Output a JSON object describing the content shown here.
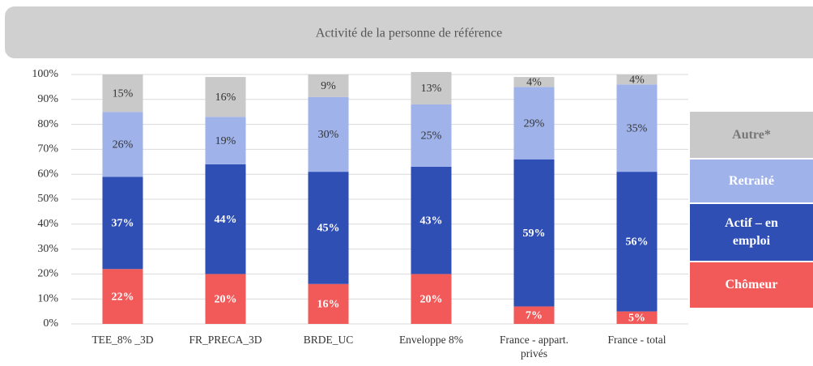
{
  "chart_data": {
    "type": "stacked_bar",
    "title": "Activité de la personne de référence",
    "categories": [
      "TEE_8% _3D",
      "FR_PRECA_3D",
      "BRDE_UC",
      "Enveloppe 8%",
      "France - appart. privés",
      "France - total"
    ],
    "series": [
      {
        "name": "Chômeur",
        "color": "#f25a5a",
        "values": [
          22,
          20,
          16,
          20,
          7,
          5
        ],
        "value_labels": [
          "22%",
          "20%",
          "16%",
          "20%",
          "7%",
          "5%"
        ]
      },
      {
        "name": "Actif – en emploi",
        "color": "#2f4fb5",
        "values": [
          37,
          44,
          45,
          43,
          59,
          56
        ],
        "value_labels": [
          "37%",
          "44%",
          "45%",
          "43%",
          "59%",
          "56%"
        ]
      },
      {
        "name": "Retraité",
        "color": "#9fb3ea",
        "values": [
          26,
          19,
          30,
          25,
          29,
          35
        ],
        "value_labels": [
          "26%",
          "19%",
          "30%",
          "25%",
          "29%",
          "35%"
        ]
      },
      {
        "name": "Autre*",
        "color": "#c9c9c9",
        "values": [
          15,
          16,
          9,
          13,
          4,
          4
        ],
        "value_labels": [
          "15%",
          "16%",
          "9%",
          "13%",
          "4%",
          "4%"
        ]
      }
    ],
    "ylim": [
      0,
      100
    ],
    "yticks": [
      {
        "value": 0,
        "label": "0%"
      },
      {
        "value": 10,
        "label": "10%"
      },
      {
        "value": 20,
        "label": "20%"
      },
      {
        "value": 30,
        "label": "30%"
      },
      {
        "value": 40,
        "label": "40%"
      },
      {
        "value": 50,
        "label": "50%"
      },
      {
        "value": 60,
        "label": "60%"
      },
      {
        "value": 70,
        "label": "70%"
      },
      {
        "value": 80,
        "label": "80%"
      },
      {
        "value": 90,
        "label": "90%"
      },
      {
        "value": 100,
        "label": "100%"
      }
    ],
    "grid": true,
    "legend": "right"
  }
}
